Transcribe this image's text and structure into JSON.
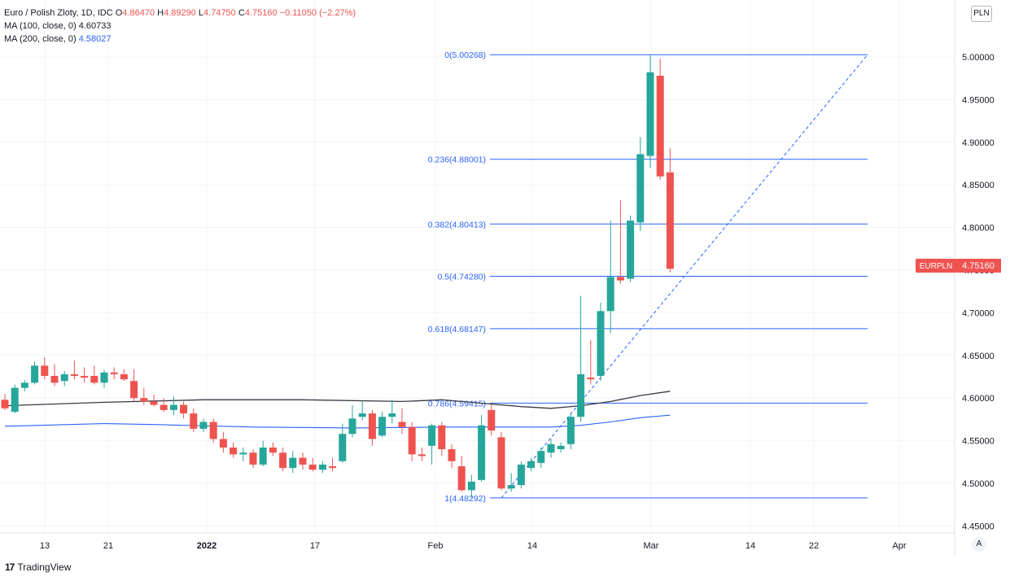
{
  "legend": {
    "symbol": "Euro / Polish Zloty, 1D, IDC",
    "open_label": "O",
    "open": "4.86470",
    "high_label": "H",
    "high": "4.89290",
    "low_label": "L",
    "low": "4.74750",
    "close_label": "C",
    "close": "4.75160",
    "change": "−0.11050 (−2.27%)",
    "ma100_label": "MA (100, close, 0)",
    "ma100_value": "4.60733",
    "ma200_label": "MA (200, close, 0)",
    "ma200_value": "4.58027"
  },
  "currency": "PLN",
  "price_tag": {
    "symbol": "EURPLN",
    "value": "4.75160"
  },
  "auto_button": "A",
  "brand": {
    "logo": "17",
    "name": "TradingView"
  },
  "colors": {
    "up": "#26a69a",
    "down": "#ef5350",
    "fib": "#2962ff",
    "ma100": "#363a45",
    "ma200": "#2962ff",
    "grid": "#f0f3fa"
  },
  "chart_data": {
    "type": "candlestick",
    "title": "Euro / Polish Zloty, 1D, IDC",
    "ylim": [
      4.42,
      5.06
    ],
    "y_ticks": [
      "4.45000",
      "4.50000",
      "4.55000",
      "4.60000",
      "4.65000",
      "4.70000",
      "4.75000",
      "4.80000",
      "4.85000",
      "4.90000",
      "4.95000",
      "5.00000"
    ],
    "x_ticks": [
      "13",
      "21",
      "2022",
      "17",
      "Feb",
      "14",
      "Mar",
      "14",
      "22",
      "Apr"
    ],
    "grid": true,
    "candles": [
      [
        4.598,
        4.605,
        4.586,
        4.588
      ],
      [
        4.584,
        4.616,
        4.582,
        4.612
      ],
      [
        4.612,
        4.621,
        4.608,
        4.618
      ],
      [
        4.618,
        4.643,
        4.616,
        4.638
      ],
      [
        4.638,
        4.648,
        4.622,
        4.626
      ],
      [
        4.626,
        4.64,
        4.614,
        4.618
      ],
      [
        4.62,
        4.632,
        4.614,
        4.628
      ],
      [
        4.628,
        4.644,
        4.622,
        4.626
      ],
      [
        4.626,
        4.636,
        4.618,
        4.624
      ],
      [
        4.626,
        4.638,
        4.616,
        4.618
      ],
      [
        4.618,
        4.633,
        4.612,
        4.63
      ],
      [
        4.63,
        4.636,
        4.622,
        4.628
      ],
      [
        4.628,
        4.634,
        4.62,
        4.622
      ],
      [
        4.62,
        4.634,
        4.596,
        4.6
      ],
      [
        4.6,
        4.612,
        4.592,
        4.596
      ],
      [
        4.596,
        4.604,
        4.59,
        4.592
      ],
      [
        4.592,
        4.6,
        4.584,
        4.586
      ],
      [
        4.586,
        4.602,
        4.58,
        4.592
      ],
      [
        4.592,
        4.596,
        4.576,
        4.582
      ],
      [
        4.582,
        4.588,
        4.56,
        4.564
      ],
      [
        4.564,
        4.576,
        4.56,
        4.572
      ],
      [
        4.572,
        4.576,
        4.548,
        4.552
      ],
      [
        4.552,
        4.56,
        4.536,
        4.542
      ],
      [
        4.542,
        4.548,
        4.53,
        4.534
      ],
      [
        4.534,
        4.542,
        4.526,
        4.536
      ],
      [
        4.536,
        4.54,
        4.518,
        4.522
      ],
      [
        4.522,
        4.55,
        4.52,
        4.542
      ],
      [
        4.542,
        4.548,
        4.532,
        4.536
      ],
      [
        4.536,
        4.542,
        4.514,
        4.518
      ],
      [
        4.518,
        4.538,
        4.512,
        4.53
      ],
      [
        4.53,
        4.536,
        4.516,
        4.522
      ],
      [
        4.522,
        4.53,
        4.514,
        4.516
      ],
      [
        4.516,
        4.526,
        4.512,
        4.522
      ],
      [
        4.52,
        4.53,
        4.514,
        4.518
      ],
      [
        4.526,
        4.57,
        4.524,
        4.558
      ],
      [
        4.558,
        4.592,
        4.554,
        4.576
      ],
      [
        4.578,
        4.596,
        4.574,
        4.582
      ],
      [
        4.582,
        4.586,
        4.544,
        4.552
      ],
      [
        4.556,
        4.584,
        4.554,
        4.578
      ],
      [
        4.578,
        4.598,
        4.57,
        4.582
      ],
      [
        4.572,
        4.588,
        4.558,
        4.566
      ],
      [
        4.566,
        4.572,
        4.526,
        4.534
      ],
      [
        4.534,
        4.542,
        4.526,
        4.532
      ],
      [
        4.544,
        4.57,
        4.522,
        4.568
      ],
      [
        4.568,
        4.572,
        4.532,
        4.54
      ],
      [
        4.54,
        4.546,
        4.518,
        4.526
      ],
      [
        4.52,
        4.532,
        4.49,
        4.492
      ],
      [
        4.492,
        4.51,
        4.483,
        4.502
      ],
      [
        4.504,
        4.58,
        4.502,
        4.568
      ],
      [
        4.586,
        4.592,
        4.556,
        4.562
      ],
      [
        4.554,
        4.56,
        4.492,
        4.494
      ],
      [
        4.494,
        4.512,
        4.49,
        4.498
      ],
      [
        4.498,
        4.526,
        4.494,
        4.522
      ],
      [
        4.518,
        4.53,
        4.514,
        4.526
      ],
      [
        4.524,
        4.542,
        4.518,
        4.538
      ],
      [
        4.536,
        4.552,
        4.53,
        4.546
      ],
      [
        4.54,
        4.548,
        4.536,
        4.544
      ],
      [
        4.546,
        4.582,
        4.54,
        4.578
      ],
      [
        4.578,
        4.72,
        4.572,
        4.628
      ],
      [
        4.624,
        4.668,
        4.616,
        4.622
      ],
      [
        4.626,
        4.712,
        4.62,
        4.702
      ],
      [
        4.702,
        4.808,
        4.676,
        4.742
      ],
      [
        4.742,
        4.832,
        4.734,
        4.738
      ],
      [
        4.74,
        4.814,
        4.736,
        4.808
      ],
      [
        4.806,
        4.906,
        4.796,
        4.886
      ],
      [
        4.884,
        5.002,
        4.87,
        4.982
      ],
      [
        4.978,
        4.998,
        4.856,
        4.86
      ],
      [
        4.8647,
        4.8929,
        4.7475,
        4.7516
      ]
    ],
    "ma100": [
      [
        0,
        4.591
      ],
      [
        10,
        4.595
      ],
      [
        20,
        4.598
      ],
      [
        30,
        4.598
      ],
      [
        40,
        4.596
      ],
      [
        44,
        4.598
      ],
      [
        48,
        4.594
      ],
      [
        52,
        4.59
      ],
      [
        55,
        4.588
      ],
      [
        58,
        4.591
      ],
      [
        61,
        4.596
      ],
      [
        64,
        4.603
      ],
      [
        67,
        4.608
      ]
    ],
    "ma200": [
      [
        0,
        4.567
      ],
      [
        10,
        4.57
      ],
      [
        15,
        4.569
      ],
      [
        25,
        4.566
      ],
      [
        35,
        4.565
      ],
      [
        45,
        4.566
      ],
      [
        55,
        4.566
      ],
      [
        58,
        4.568
      ],
      [
        61,
        4.572
      ],
      [
        64,
        4.577
      ],
      [
        67,
        4.58
      ]
    ],
    "fib": {
      "levels": [
        {
          "label": "0(5.00268)",
          "value": 5.00268
        },
        {
          "label": "0.236(4.88001)",
          "value": 4.88001
        },
        {
          "label": "0.382(4.80413)",
          "value": 4.80413
        },
        {
          "label": "0.5(4.74280)",
          "value": 4.7428
        },
        {
          "label": "0.618(4.68147)",
          "value": 4.68147
        },
        {
          "label": "0.786(4.59415)",
          "value": 4.59415
        },
        {
          "label": "1(4.48292)",
          "value": 4.48292
        }
      ]
    }
  }
}
